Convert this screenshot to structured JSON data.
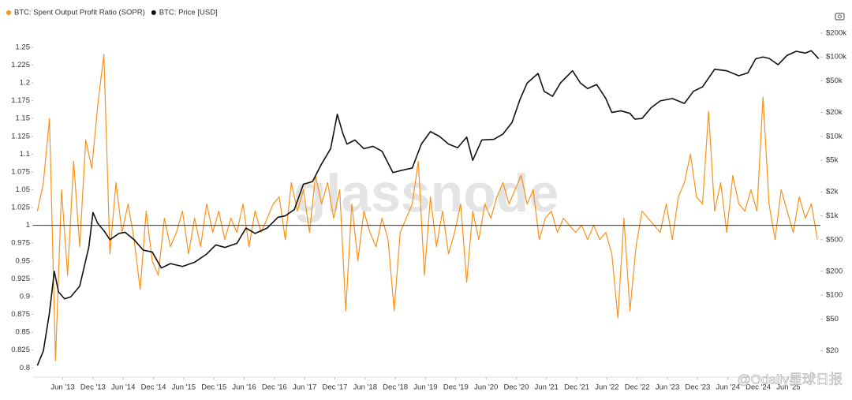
{
  "chart_data": {
    "type": "line",
    "watermarks": [
      "glassnode",
      "@Odaily星球日报"
    ],
    "xlim": [
      2012.93,
      2025.95
    ],
    "xticks": [
      {
        "value": 2013.42,
        "label": "Jun '13"
      },
      {
        "value": 2013.92,
        "label": "Dec '13"
      },
      {
        "value": 2014.42,
        "label": "Jun '14"
      },
      {
        "value": 2014.92,
        "label": "Dec '14"
      },
      {
        "value": 2015.42,
        "label": "Jun '15"
      },
      {
        "value": 2015.92,
        "label": "Dec '15"
      },
      {
        "value": 2016.42,
        "label": "Jun '16"
      },
      {
        "value": 2016.92,
        "label": "Dec '16"
      },
      {
        "value": 2017.42,
        "label": "Jun '17"
      },
      {
        "value": 2017.92,
        "label": "Dec '17"
      },
      {
        "value": 2018.42,
        "label": "Jun '18"
      },
      {
        "value": 2018.92,
        "label": "Dec '18"
      },
      {
        "value": 2019.42,
        "label": "Jun '19"
      },
      {
        "value": 2019.92,
        "label": "Dec '19"
      },
      {
        "value": 2020.42,
        "label": "Jun '20"
      },
      {
        "value": 2020.92,
        "label": "Dec '20"
      },
      {
        "value": 2021.42,
        "label": "Jun '21"
      },
      {
        "value": 2021.92,
        "label": "Dec '21"
      },
      {
        "value": 2022.42,
        "label": "Jun '22"
      },
      {
        "value": 2022.92,
        "label": "Dec '22"
      },
      {
        "value": 2023.42,
        "label": "Jun '23"
      },
      {
        "value": 2023.92,
        "label": "Dec '23"
      },
      {
        "value": 2024.42,
        "label": "Jun '24"
      },
      {
        "value": 2024.92,
        "label": "Dec '24"
      },
      {
        "value": 2025.42,
        "label": "Jun '25"
      }
    ],
    "ylim": [
      0.787,
      1.272
    ],
    "yticks": [
      0.8,
      0.825,
      0.85,
      0.875,
      0.9,
      0.925,
      0.95,
      0.975,
      1,
      1.025,
      1.05,
      1.075,
      1.1,
      1.125,
      1.15,
      1.175,
      1.2,
      1.225,
      1.25
    ],
    "y2lim": [
      9.3,
      209000
    ],
    "y2log": true,
    "y2ticks": [
      {
        "value": 20,
        "label": "$20"
      },
      {
        "value": 50,
        "label": "$50"
      },
      {
        "value": 100,
        "label": "$100"
      },
      {
        "value": 200,
        "label": "$200"
      },
      {
        "value": 500,
        "label": "$500"
      },
      {
        "value": 1000,
        "label": "$1k"
      },
      {
        "value": 2000,
        "label": "$2k"
      },
      {
        "value": 5000,
        "label": "$5k"
      },
      {
        "value": 10000,
        "label": "$10k"
      },
      {
        "value": 20000,
        "label": "$20k"
      },
      {
        "value": 50000,
        "label": "$50k"
      },
      {
        "value": 100000,
        "label": "$100k"
      },
      {
        "value": 200000,
        "label": "$200k"
      }
    ],
    "reference_line": 1,
    "grid": false,
    "legend": "top-left",
    "series": [
      {
        "name": "BTC: Spent Output Profit Ratio (SOPR)",
        "color": "#f7931a",
        "axis": "y",
        "x": [
          2013.0,
          2013.1,
          2013.2,
          2013.3,
          2013.4,
          2013.5,
          2013.6,
          2013.7,
          2013.8,
          2013.9,
          2014.0,
          2014.1,
          2014.2,
          2014.3,
          2014.4,
          2014.5,
          2014.6,
          2014.7,
          2014.8,
          2014.9,
          2015.0,
          2015.1,
          2015.2,
          2015.3,
          2015.4,
          2015.5,
          2015.6,
          2015.7,
          2015.8,
          2015.9,
          2016.0,
          2016.1,
          2016.2,
          2016.3,
          2016.4,
          2016.5,
          2016.6,
          2016.7,
          2016.8,
          2016.9,
          2017.0,
          2017.1,
          2017.2,
          2017.3,
          2017.4,
          2017.5,
          2017.6,
          2017.7,
          2017.8,
          2017.9,
          2018.0,
          2018.1,
          2018.2,
          2018.3,
          2018.4,
          2018.5,
          2018.6,
          2018.7,
          2018.8,
          2018.9,
          2019.0,
          2019.1,
          2019.2,
          2019.3,
          2019.4,
          2019.5,
          2019.6,
          2019.7,
          2019.8,
          2019.9,
          2020.0,
          2020.1,
          2020.2,
          2020.3,
          2020.4,
          2020.5,
          2020.6,
          2020.7,
          2020.8,
          2020.9,
          2021.0,
          2021.1,
          2021.2,
          2021.3,
          2021.4,
          2021.5,
          2021.6,
          2021.7,
          2021.8,
          2021.9,
          2022.0,
          2022.1,
          2022.2,
          2022.3,
          2022.4,
          2022.5,
          2022.6,
          2022.7,
          2022.8,
          2022.9,
          2023.0,
          2023.1,
          2023.2,
          2023.3,
          2023.4,
          2023.5,
          2023.6,
          2023.7,
          2023.8,
          2023.9,
          2024.0,
          2024.1,
          2024.2,
          2024.3,
          2024.4,
          2024.5,
          2024.6,
          2024.7,
          2024.8,
          2024.9,
          2025.0,
          2025.1,
          2025.2,
          2025.3,
          2025.4,
          2025.5,
          2025.6,
          2025.7,
          2025.8,
          2025.9
        ],
        "values": [
          1.02,
          1.06,
          1.15,
          0.81,
          1.05,
          0.93,
          1.09,
          0.97,
          1.12,
          1.08,
          1.17,
          1.24,
          0.96,
          1.06,
          0.99,
          1.03,
          0.98,
          0.91,
          1.02,
          0.95,
          0.93,
          1.01,
          0.97,
          0.99,
          1.02,
          0.96,
          1.01,
          0.97,
          1.03,
          0.99,
          1.02,
          0.98,
          1.01,
          0.99,
          1.03,
          0.97,
          1.02,
          0.99,
          1.01,
          1.03,
          1.04,
          0.98,
          1.06,
          1.02,
          1.05,
          0.99,
          1.07,
          1.03,
          1.06,
          1.01,
          1.05,
          0.88,
          1.03,
          0.95,
          1.02,
          0.99,
          0.97,
          1.01,
          0.98,
          0.88,
          0.99,
          1.01,
          1.03,
          1.09,
          0.93,
          1.04,
          0.97,
          1.02,
          0.96,
          0.99,
          1.03,
          0.92,
          1.02,
          0.98,
          1.03,
          1.01,
          1.04,
          1.06,
          1.03,
          1.05,
          1.07,
          1.03,
          1.05,
          0.98,
          1.01,
          1.02,
          0.99,
          1.01,
          1.0,
          0.99,
          1.0,
          0.98,
          1.0,
          0.98,
          0.99,
          0.96,
          0.87,
          1.01,
          0.88,
          0.97,
          1.02,
          1.01,
          1.0,
          0.99,
          1.03,
          0.98,
          1.04,
          1.06,
          1.1,
          1.04,
          1.03,
          1.16,
          1.02,
          1.06,
          0.99,
          1.07,
          1.03,
          1.02,
          1.05,
          1.02,
          1.18,
          1.03,
          0.98,
          1.05,
          1.02,
          0.99,
          1.04,
          1.01,
          1.03,
          0.98
        ]
      },
      {
        "name": "BTC: Price [USD]",
        "color": "#111111",
        "axis": "y2",
        "x": [
          2013.0,
          2013.1,
          2013.2,
          2013.28,
          2013.35,
          2013.45,
          2013.55,
          2013.7,
          2013.85,
          2013.92,
          2014.0,
          2014.1,
          2014.2,
          2014.35,
          2014.45,
          2014.6,
          2014.75,
          2014.9,
          2015.05,
          2015.2,
          2015.4,
          2015.6,
          2015.8,
          2015.95,
          2016.1,
          2016.3,
          2016.45,
          2016.6,
          2016.8,
          2016.98,
          2017.1,
          2017.25,
          2017.4,
          2017.55,
          2017.7,
          2017.85,
          2017.96,
          2018.05,
          2018.12,
          2018.25,
          2018.4,
          2018.55,
          2018.7,
          2018.88,
          2019.0,
          2019.2,
          2019.35,
          2019.5,
          2019.65,
          2019.8,
          2019.95,
          2020.1,
          2020.2,
          2020.35,
          2020.55,
          2020.7,
          2020.85,
          2020.98,
          2021.1,
          2021.28,
          2021.38,
          2021.52,
          2021.65,
          2021.85,
          2021.98,
          2022.1,
          2022.25,
          2022.4,
          2022.5,
          2022.65,
          2022.8,
          2022.88,
          2023.0,
          2023.15,
          2023.3,
          2023.5,
          2023.7,
          2023.85,
          2024.0,
          2024.2,
          2024.4,
          2024.6,
          2024.75,
          2024.88,
          2025.0,
          2025.1,
          2025.25,
          2025.4,
          2025.55,
          2025.7,
          2025.8,
          2025.92
        ],
        "values": [
          13,
          20,
          60,
          200,
          110,
          90,
          95,
          130,
          400,
          1100,
          800,
          650,
          500,
          600,
          620,
          500,
          370,
          350,
          220,
          250,
          230,
          260,
          330,
          430,
          400,
          450,
          700,
          600,
          700,
          960,
          1000,
          1200,
          2500,
          2700,
          4500,
          7000,
          19000,
          11000,
          8000,
          9000,
          7000,
          7500,
          6500,
          3500,
          3700,
          4000,
          8000,
          11500,
          10000,
          8000,
          7200,
          9800,
          5000,
          9000,
          9200,
          10700,
          15000,
          29000,
          47000,
          62000,
          37000,
          32000,
          47000,
          67000,
          47000,
          40000,
          45000,
          30000,
          20000,
          21000,
          19500,
          16500,
          16800,
          23000,
          28000,
          30000,
          26000,
          37000,
          42000,
          70000,
          67000,
          58000,
          63000,
          95000,
          100000,
          96000,
          80000,
          105000,
          118000,
          112000,
          120000,
          95000
        ]
      }
    ]
  }
}
